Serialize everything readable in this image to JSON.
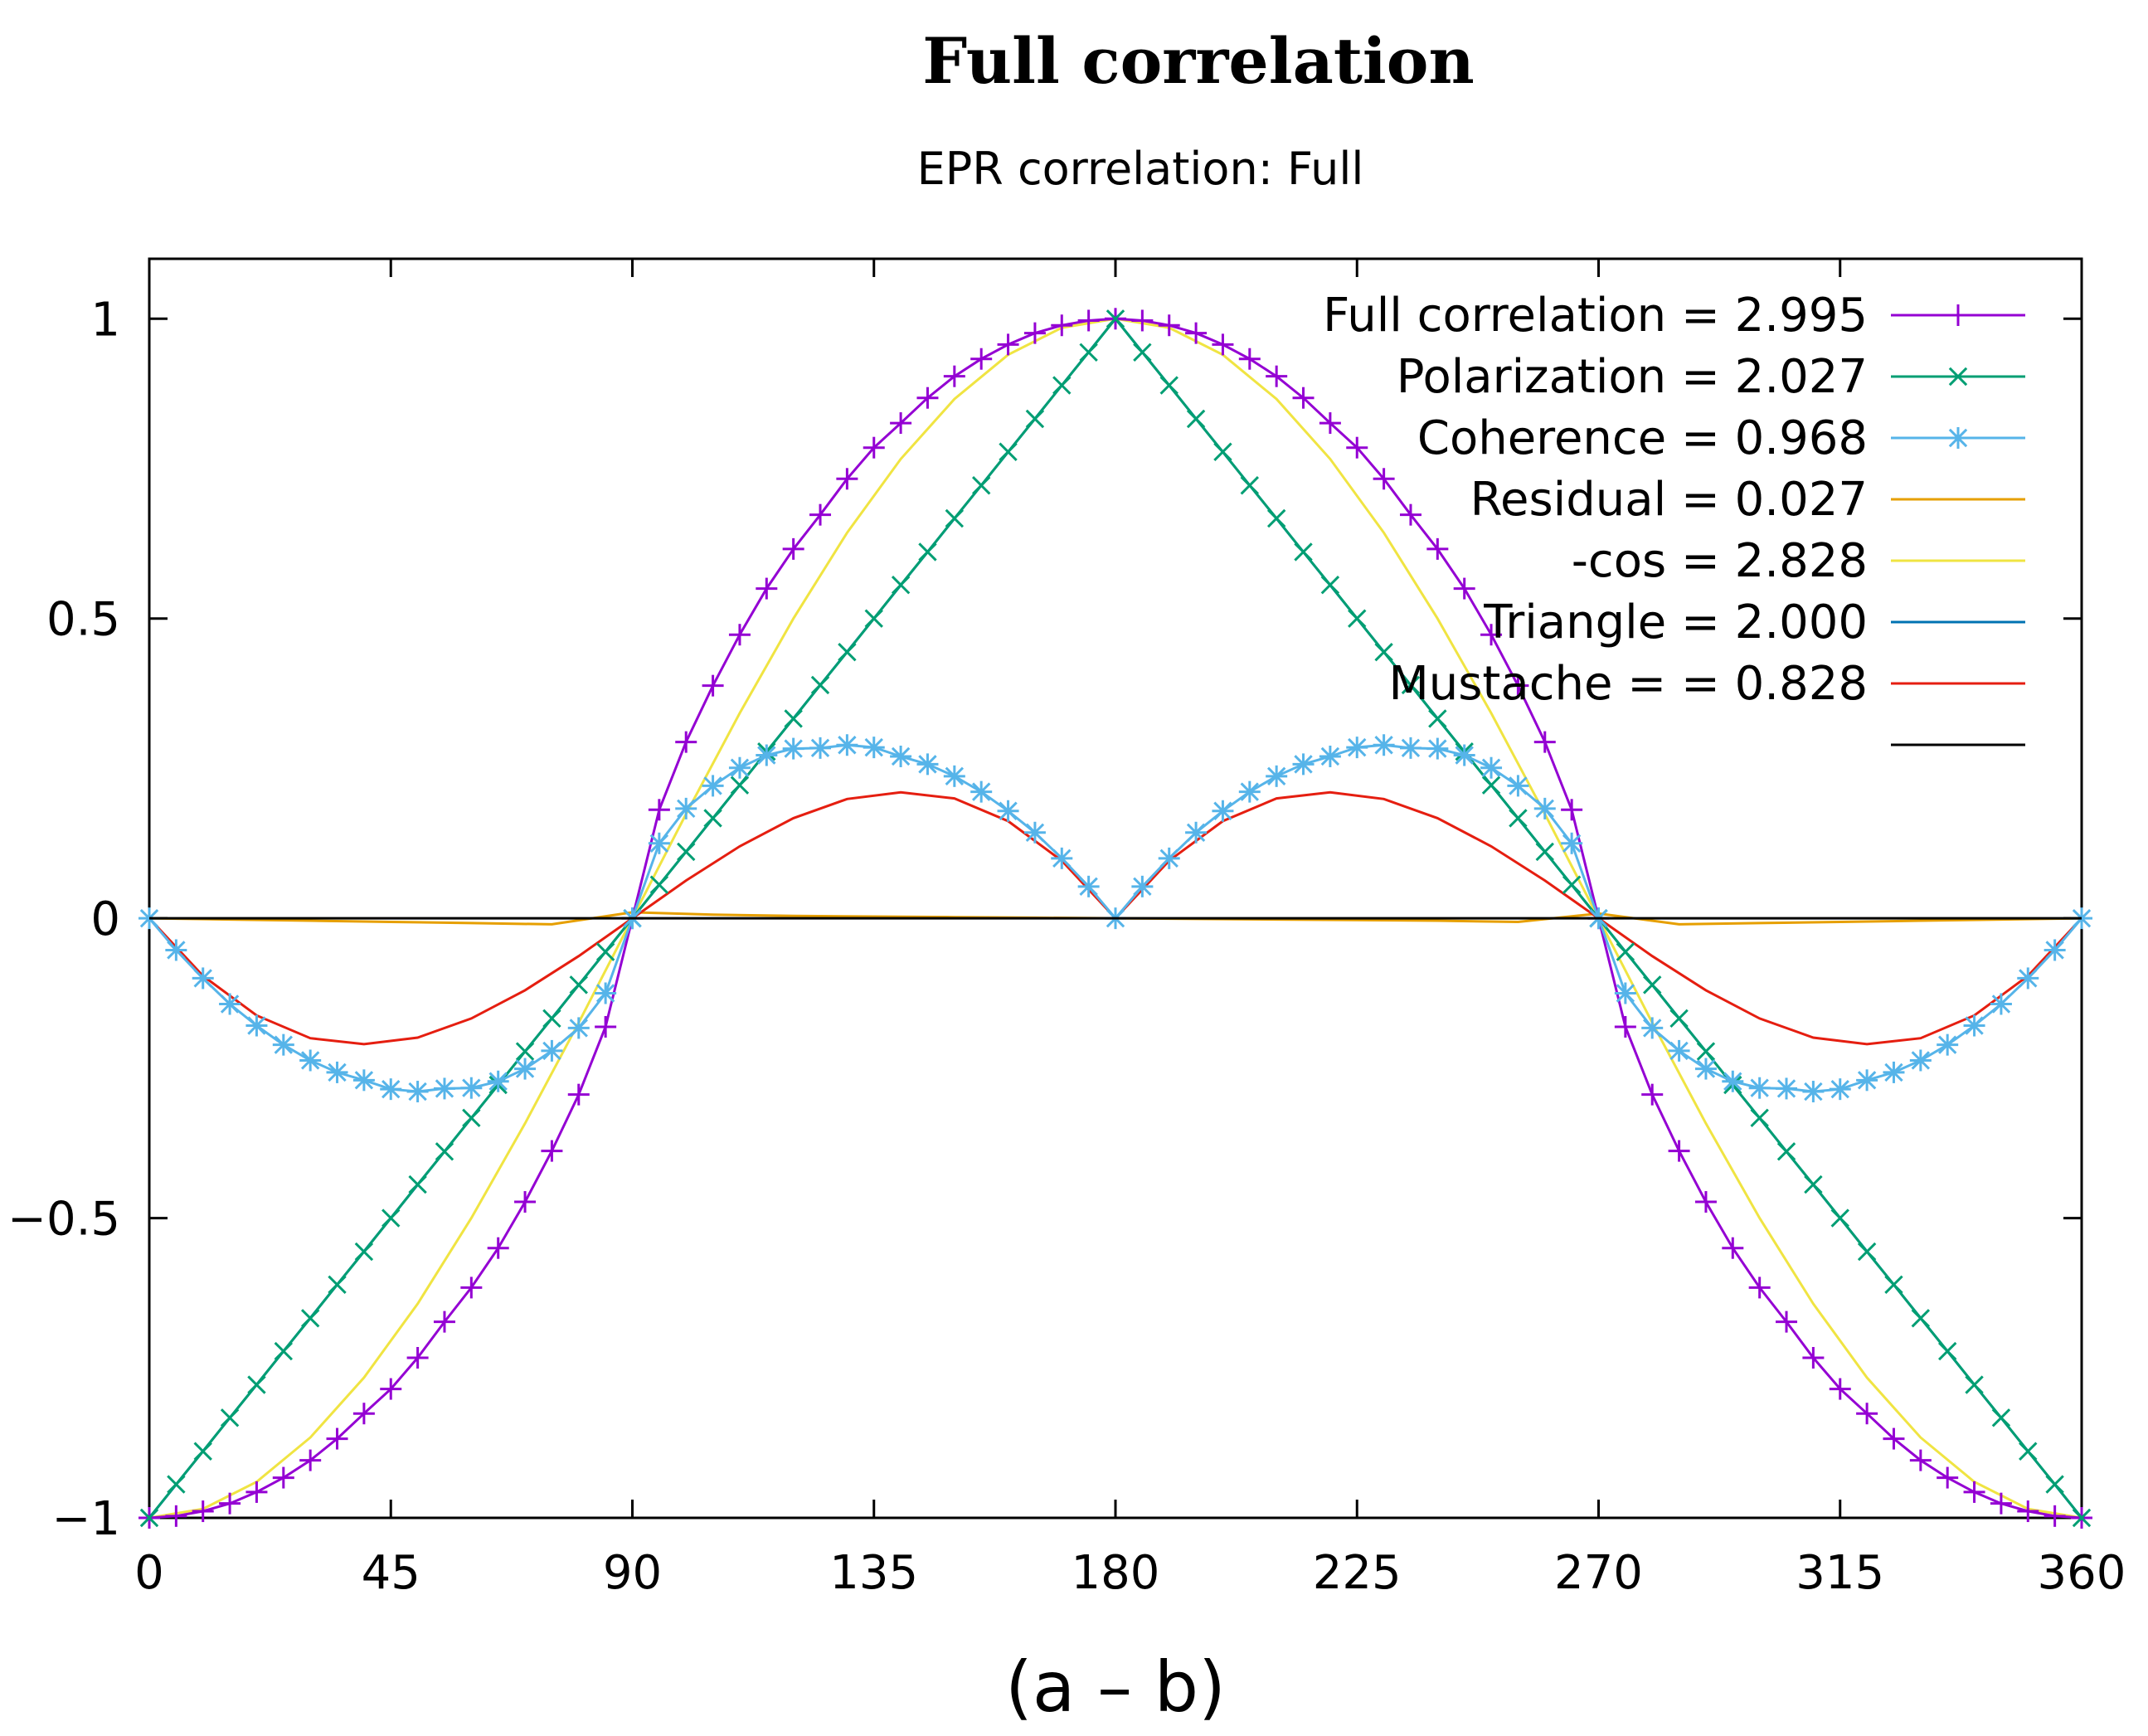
{
  "chart_data": {
    "type": "line",
    "title": "Full correlation",
    "subtitle": "EPR correlation: Full",
    "xlabel": "(a – b)",
    "ylabel": "",
    "xlim": [
      0,
      360
    ],
    "ylim": [
      -1,
      1.1
    ],
    "xticks": [
      0,
      45,
      90,
      135,
      180,
      225,
      270,
      315,
      360
    ],
    "yticks": [
      -1,
      -0.5,
      0,
      0.5,
      1
    ],
    "ytick_labels": [
      "−1",
      "−0.5",
      "0",
      "0.5",
      "1"
    ],
    "legend_position": "top-right",
    "series": [
      {
        "name": "Full correlation = 2.995",
        "color": "#9400d3",
        "marker": "plus",
        "formula": "sign(-cos) * |cos|^0.7",
        "x": [
          0,
          5,
          10,
          15,
          20,
          25,
          30,
          35,
          40,
          45,
          50,
          55,
          60,
          65,
          70,
          75,
          80,
          85,
          90,
          95,
          100,
          105,
          110,
          115,
          120,
          125,
          130,
          135,
          140,
          145,
          150,
          155,
          160,
          165,
          170,
          175,
          180,
          185,
          190,
          195,
          200,
          205,
          210,
          215,
          220,
          225,
          230,
          235,
          240,
          245,
          250,
          255,
          260,
          265,
          270,
          275,
          280,
          285,
          290,
          295,
          300,
          305,
          310,
          315,
          320,
          325,
          330,
          335,
          340,
          345,
          350,
          355,
          360
        ],
        "values": [
          -1,
          -0.997,
          -0.989,
          -0.976,
          -0.957,
          -0.933,
          -0.904,
          -0.868,
          -0.826,
          -0.785,
          -0.733,
          -0.673,
          -0.616,
          -0.55,
          -0.473,
          -0.388,
          -0.294,
          -0.181,
          0,
          0.181,
          0.294,
          0.388,
          0.473,
          0.55,
          0.616,
          0.673,
          0.733,
          0.785,
          0.826,
          0.868,
          0.904,
          0.933,
          0.957,
          0.976,
          0.989,
          0.997,
          1,
          0.997,
          0.989,
          0.976,
          0.957,
          0.933,
          0.904,
          0.868,
          0.826,
          0.785,
          0.733,
          0.673,
          0.616,
          0.55,
          0.473,
          0.388,
          0.294,
          0.181,
          0,
          -0.181,
          -0.294,
          -0.388,
          -0.473,
          -0.55,
          -0.616,
          -0.673,
          -0.733,
          -0.785,
          -0.826,
          -0.868,
          -0.904,
          -0.933,
          -0.957,
          -0.976,
          -0.989,
          -0.997,
          -1
        ]
      },
      {
        "name": "Polarization = 2.027",
        "color": "#009e73",
        "marker": "x",
        "formula": "triangle",
        "x": [
          0,
          5,
          10,
          15,
          20,
          25,
          30,
          35,
          40,
          45,
          50,
          55,
          60,
          65,
          70,
          75,
          80,
          85,
          90,
          95,
          100,
          105,
          110,
          115,
          120,
          125,
          130,
          135,
          140,
          145,
          150,
          155,
          160,
          165,
          170,
          175,
          180,
          185,
          190,
          195,
          200,
          205,
          210,
          215,
          220,
          225,
          230,
          235,
          240,
          245,
          250,
          255,
          260,
          265,
          270,
          275,
          280,
          285,
          290,
          295,
          300,
          305,
          310,
          315,
          320,
          325,
          330,
          335,
          340,
          345,
          350,
          355,
          360
        ],
        "values": [
          -1,
          -0.944,
          -0.889,
          -0.833,
          -0.778,
          -0.722,
          -0.667,
          -0.611,
          -0.556,
          -0.5,
          -0.444,
          -0.389,
          -0.333,
          -0.278,
          -0.222,
          -0.167,
          -0.111,
          -0.056,
          0,
          0.056,
          0.111,
          0.167,
          0.222,
          0.278,
          0.333,
          0.389,
          0.444,
          0.5,
          0.556,
          0.611,
          0.667,
          0.722,
          0.778,
          0.833,
          0.889,
          0.944,
          1,
          0.944,
          0.889,
          0.833,
          0.778,
          0.722,
          0.667,
          0.611,
          0.556,
          0.5,
          0.444,
          0.389,
          0.333,
          0.278,
          0.222,
          0.167,
          0.111,
          0.056,
          0,
          -0.056,
          -0.111,
          -0.167,
          -0.222,
          -0.278,
          -0.333,
          -0.389,
          -0.444,
          -0.5,
          -0.556,
          -0.611,
          -0.667,
          -0.722,
          -0.778,
          -0.833,
          -0.889,
          -0.944,
          -1
        ]
      },
      {
        "name": "Coherence = 0.968",
        "color": "#56b4e9",
        "marker": "star",
        "formula": "Full correlation - Triangle",
        "x": [
          0,
          5,
          10,
          15,
          20,
          25,
          30,
          35,
          40,
          45,
          50,
          55,
          60,
          65,
          70,
          75,
          80,
          85,
          90,
          95,
          100,
          105,
          110,
          115,
          120,
          125,
          130,
          135,
          140,
          145,
          150,
          155,
          160,
          165,
          170,
          175,
          180,
          185,
          190,
          195,
          200,
          205,
          210,
          215,
          220,
          225,
          230,
          235,
          240,
          245,
          250,
          255,
          260,
          265,
          270,
          275,
          280,
          285,
          290,
          295,
          300,
          305,
          310,
          315,
          320,
          325,
          330,
          335,
          340,
          345,
          350,
          355,
          360
        ],
        "values": [
          0,
          -0.053,
          -0.1,
          -0.143,
          -0.179,
          -0.211,
          -0.237,
          -0.257,
          -0.27,
          -0.285,
          -0.289,
          -0.284,
          -0.283,
          -0.272,
          -0.251,
          -0.221,
          -0.183,
          -0.125,
          0,
          0.125,
          0.183,
          0.221,
          0.251,
          0.272,
          0.283,
          0.284,
          0.289,
          0.285,
          0.27,
          0.257,
          0.237,
          0.211,
          0.179,
          0.143,
          0.1,
          0.053,
          0,
          0.053,
          0.1,
          0.143,
          0.179,
          0.211,
          0.237,
          0.257,
          0.27,
          0.285,
          0.289,
          0.284,
          0.283,
          0.272,
          0.251,
          0.221,
          0.183,
          0.125,
          0,
          -0.125,
          -0.183,
          -0.221,
          -0.251,
          -0.272,
          -0.283,
          -0.284,
          -0.289,
          -0.285,
          -0.27,
          -0.257,
          -0.237,
          -0.211,
          -0.179,
          -0.143,
          -0.1,
          -0.053,
          0
        ]
      },
      {
        "name": "Residual = 0.027",
        "color": "#e69f00",
        "marker": "none",
        "x": [
          0,
          15,
          30,
          45,
          60,
          75,
          90,
          105,
          120,
          135,
          150,
          165,
          180,
          195,
          210,
          225,
          240,
          255,
          270,
          285,
          300,
          315,
          330,
          345,
          360
        ],
        "values": [
          0,
          -0.002,
          -0.004,
          -0.006,
          -0.008,
          -0.01,
          0.01,
          0.006,
          0.004,
          0.003,
          0.002,
          0.001,
          0,
          -0.001,
          -0.002,
          -0.003,
          -0.004,
          -0.006,
          0.008,
          -0.01,
          -0.008,
          -0.006,
          -0.004,
          -0.002,
          0
        ]
      },
      {
        "name": "-cos = 2.828",
        "color": "#f0e442",
        "marker": "none",
        "formula": "-cos(x)",
        "x": [
          0,
          10,
          20,
          30,
          40,
          50,
          60,
          70,
          80,
          90,
          100,
          110,
          120,
          130,
          140,
          150,
          160,
          170,
          180,
          190,
          200,
          210,
          220,
          230,
          240,
          250,
          260,
          270,
          280,
          290,
          300,
          310,
          320,
          330,
          340,
          350,
          360
        ],
        "values": [
          -1,
          -0.985,
          -0.94,
          -0.866,
          -0.766,
          -0.643,
          -0.5,
          -0.342,
          -0.174,
          0,
          0.174,
          0.342,
          0.5,
          0.643,
          0.766,
          0.866,
          0.94,
          0.985,
          1,
          0.985,
          0.94,
          0.866,
          0.766,
          0.643,
          0.5,
          0.342,
          0.174,
          0,
          -0.174,
          -0.342,
          -0.5,
          -0.643,
          -0.766,
          -0.866,
          -0.94,
          -0.985,
          -1
        ]
      },
      {
        "name": "Triangle = 2.000",
        "color": "#0072b2",
        "marker": "none",
        "x": [
          0,
          90,
          180,
          270,
          360
        ],
        "values": [
          -1,
          0,
          1,
          0,
          -1
        ]
      },
      {
        "name": "Mustache = = 0.828",
        "color": "#e51e10",
        "marker": "none",
        "formula": "-cos - Triangle",
        "x": [
          0,
          10,
          20,
          30,
          40,
          50,
          60,
          70,
          80,
          90,
          100,
          110,
          120,
          130,
          140,
          150,
          160,
          170,
          180,
          190,
          200,
          210,
          220,
          230,
          240,
          250,
          260,
          270,
          280,
          290,
          300,
          310,
          320,
          330,
          340,
          350,
          360
        ],
        "values": [
          0,
          -0.096,
          -0.162,
          -0.2,
          -0.21,
          -0.199,
          -0.167,
          -0.12,
          -0.063,
          0,
          0.063,
          0.12,
          0.167,
          0.199,
          0.21,
          0.2,
          0.162,
          0.096,
          0,
          0.096,
          0.162,
          0.2,
          0.21,
          0.199,
          0.167,
          0.12,
          0.063,
          0,
          -0.063,
          -0.12,
          -0.167,
          -0.199,
          -0.21,
          -0.2,
          -0.162,
          -0.096,
          0
        ]
      },
      {
        "name": "",
        "color": "#000000",
        "marker": "none",
        "x": [
          0,
          360
        ],
        "values": [
          0,
          0
        ]
      }
    ]
  }
}
